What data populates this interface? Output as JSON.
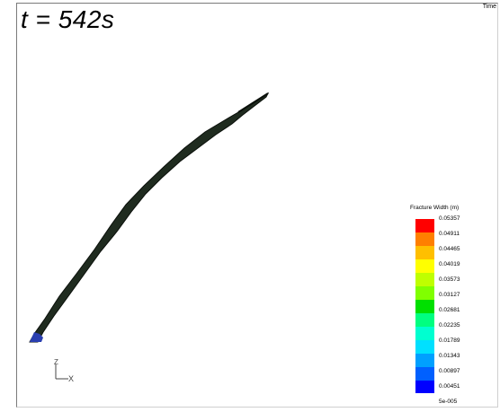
{
  "viewer": {
    "time_label": "t = 542s",
    "corner_label": "Time"
  },
  "axis": {
    "z_label": "Z",
    "x_label": "X"
  },
  "legend": {
    "title": "Fracture Width (m)",
    "ticks": [
      "0.05357",
      "0.04911",
      "0.04465",
      "0.04019",
      "0.03573",
      "0.03127",
      "0.02681",
      "0.02235",
      "0.01789",
      "0.01343",
      "0.00897",
      "0.00451",
      "5e-005"
    ],
    "colors": [
      "#ff0000",
      "#ff7f00",
      "#ffbf00",
      "#ffff00",
      "#bfff00",
      "#80ff00",
      "#00e000",
      "#00ff80",
      "#00ffd0",
      "#00e0ff",
      "#00a0ff",
      "#0060ff",
      "#0000ff"
    ]
  },
  "fracture_colors": {
    "body": "#1f2b1f",
    "edge": "#0a0f0a",
    "tip": "#2a3fb0"
  }
}
